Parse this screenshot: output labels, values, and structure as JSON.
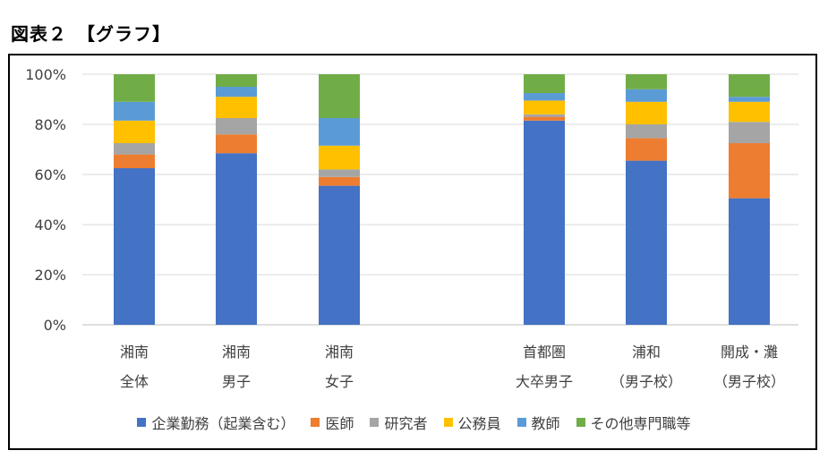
{
  "figure_title": "図表２　【グラフ】",
  "chart_data": {
    "type": "bar",
    "stacked": true,
    "title": "",
    "xlabel": "",
    "ylabel": "",
    "ylim": [
      0,
      100
    ],
    "yticks": [
      "0%",
      "20%",
      "40%",
      "60%",
      "80%",
      "100%"
    ],
    "categories": [
      [
        "湘南",
        "全体"
      ],
      [
        "湘南",
        "男子"
      ],
      [
        "湘南",
        "女子"
      ],
      [
        "首都圏",
        "大卒男子"
      ],
      [
        "浦和",
        "（男子校）"
      ],
      [
        "開成・灘",
        "（男子校）"
      ]
    ],
    "grid": true,
    "legend_position": "bottom",
    "series": [
      {
        "name": "企業勤務（起業含む）",
        "color": "#4472C4",
        "values": [
          62.5,
          68.5,
          55.5,
          81.5,
          65.5,
          50.5
        ]
      },
      {
        "name": "医師",
        "color": "#ED7D31",
        "values": [
          5.5,
          7.5,
          3.5,
          1.5,
          9,
          22
        ]
      },
      {
        "name": "研究者",
        "color": "#A5A5A5",
        "values": [
          4.5,
          6.5,
          3,
          1,
          5.5,
          8.5
        ]
      },
      {
        "name": "公務員",
        "color": "#FFC000",
        "values": [
          9,
          8.5,
          9.5,
          5.5,
          9,
          8
        ]
      },
      {
        "name": "教師",
        "color": "#5B9BD5",
        "values": [
          7.5,
          4,
          11,
          3,
          5,
          2
        ]
      },
      {
        "name": "その他専門職等",
        "color": "#70AD47",
        "values": [
          11,
          5,
          17.5,
          7.5,
          6,
          9
        ]
      }
    ]
  }
}
